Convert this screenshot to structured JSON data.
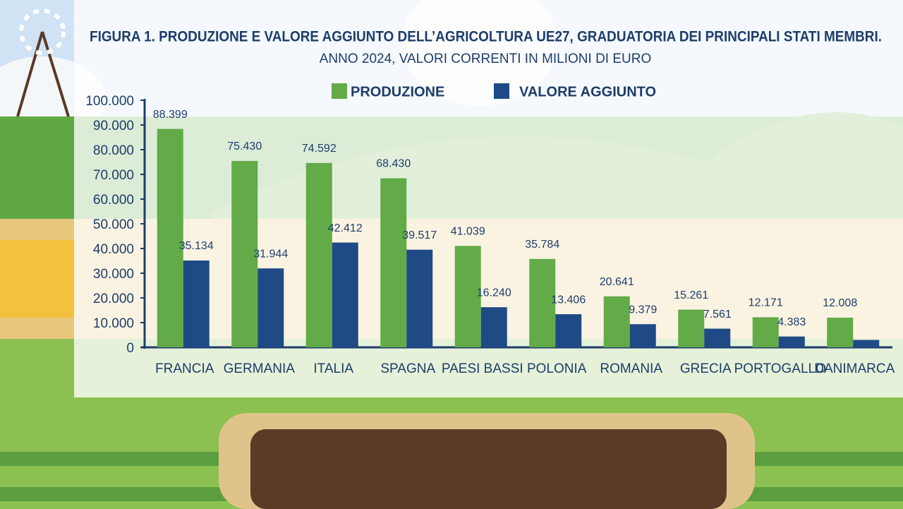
{
  "chart_data": {
    "type": "bar",
    "title": "FIGURA 1. PRODUZIONE E VALORE AGGIUNTO DELL’AGRICOLTURA UE27, GRADUATORIA DEI PRINCIPALI STATI MEMBRI.",
    "subtitle": "ANNO 2024, VALORI CORRENTI IN MILIONI DI EURO",
    "categories": [
      "FRANCIA",
      "GERMANIA",
      "ITALIA",
      "SPAGNA",
      "PAESI BASSI",
      "POLONIA",
      "ROMANIA",
      "GRECIA",
      "PORTOGALLO",
      "DANIMARCA"
    ],
    "series": [
      {
        "name": "PRODUZIONE",
        "color": "#62ab48",
        "values": [
          88399,
          75430,
          74592,
          68430,
          41039,
          35784,
          20641,
          15261,
          12171,
          12008
        ],
        "value_labels": [
          "88.399",
          "75.430",
          "74.592",
          "68.430",
          "41.039",
          "35.784",
          "20.641",
          "15.261",
          "12.171",
          "12.008"
        ]
      },
      {
        "name": "VALORE AGGIUNTO",
        "color": "#1f4a85",
        "values": [
          35134,
          31944,
          42412,
          39517,
          16240,
          13406,
          9379,
          7561,
          4383,
          3000
        ],
        "value_labels": [
          "35.134",
          "31.944",
          "42.412",
          "39.517",
          "16.240",
          "13.406",
          "9.379",
          "7.561",
          "4.383",
          null
        ]
      }
    ],
    "ylim": [
      0,
      100000
    ],
    "yticks": [
      0,
      {
        "value": 10000,
        "label": "10.000"
      },
      {
        "value": 20000,
        "label": "20.000"
      },
      {
        "value": 30000,
        "label": "30.000"
      },
      {
        "value": 40000,
        "label": "40.000"
      },
      {
        "value": 50000,
        "label": "50.000"
      },
      {
        "value": 60000,
        "label": "60.000"
      },
      {
        "value": 70000,
        "label": "70.000"
      },
      {
        "value": 80000,
        "label": "80.000"
      },
      {
        "value": 90000,
        "label": "90.000"
      },
      {
        "value": 100000,
        "label": "100.000"
      }
    ],
    "legend": "top"
  }
}
